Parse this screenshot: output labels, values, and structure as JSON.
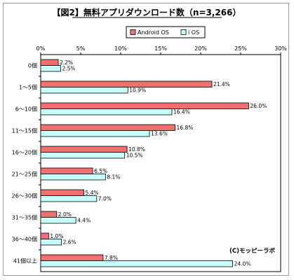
{
  "chart_data": {
    "type": "bar",
    "orientation": "horizontal",
    "title": "【図2】無料アプリダウンロード数（n=3,266）",
    "categories": [
      "0個",
      "1～5個",
      "6～10個",
      "11～15個",
      "16～20個",
      "21～25個",
      "26～30個",
      "31～35個",
      "36～40個",
      "41個以上"
    ],
    "series": [
      {
        "name": "Android OS",
        "color": "#f07070",
        "values": [
          2.2,
          21.4,
          26.0,
          16.8,
          10.8,
          6.5,
          5.4,
          2.0,
          1.0,
          7.8
        ],
        "labels": [
          "2.2%",
          "21.4%",
          "26.0%",
          "16.8%",
          "10.8%",
          "6.5%",
          "5.4%",
          "2.0%",
          "1.0%",
          "7.8%"
        ]
      },
      {
        "name": "i OS",
        "color": "#c8ffff",
        "values": [
          2.5,
          10.9,
          16.4,
          13.6,
          10.5,
          8.1,
          7.0,
          4.4,
          2.6,
          24.0
        ],
        "labels": [
          "2.5%",
          "10.9%",
          "16.4%",
          "13.6%",
          "10.5%",
          "8.1%",
          "7.0%",
          "4.4%",
          "2.6%",
          "24.0%"
        ]
      }
    ],
    "xlim": [
      0,
      30
    ],
    "xticks": [
      "0%",
      "5%",
      "10%",
      "15%",
      "20%",
      "25%",
      "30%"
    ],
    "grid": false,
    "legend_position": "top-right",
    "credit": "(C)モッピーラボ"
  }
}
